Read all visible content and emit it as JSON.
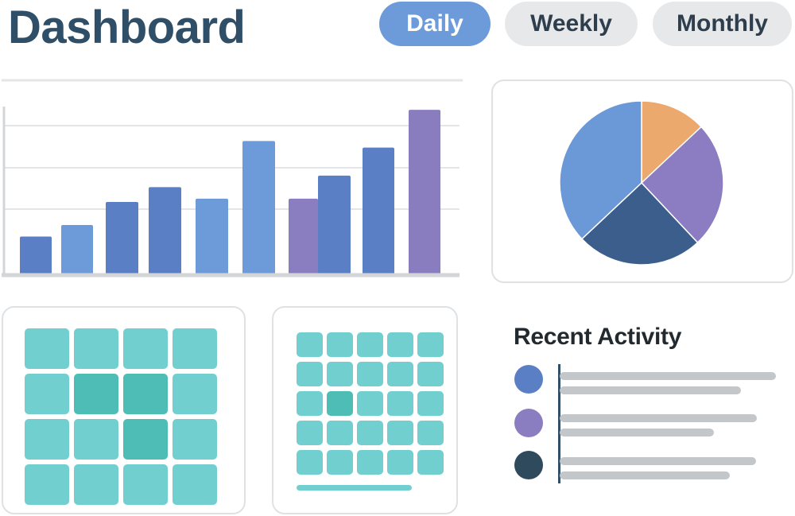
{
  "header": {
    "title": "Dashboard",
    "tabs": [
      {
        "label": "Daily",
        "active": true
      },
      {
        "label": "Weekly",
        "active": false
      },
      {
        "label": "Monthly",
        "active": false
      }
    ]
  },
  "chart_data": [
    {
      "type": "bar",
      "title": "",
      "xlabel": "",
      "ylabel": "",
      "ylim": [
        0,
        100
      ],
      "grid": true,
      "bars": [
        {
          "value": 22,
          "color": "#5a7fc4"
        },
        {
          "value": 29,
          "color": "#6d9ad8"
        },
        {
          "value": 43,
          "color": "#5a7fc4"
        },
        {
          "value": 52,
          "color": "#5a7fc4"
        },
        {
          "value": 45,
          "color": "#6d9ad8"
        },
        {
          "value": 80,
          "color": "#6d9ad8"
        },
        {
          "value": 45,
          "color": "#8a7dc0"
        },
        {
          "value": 59,
          "color": "#5a7fc4"
        },
        {
          "value": 76,
          "color": "#5a7fc4"
        },
        {
          "value": 99,
          "color": "#8a7dbf"
        }
      ]
    },
    {
      "type": "pie",
      "slices": [
        {
          "value": 13,
          "color": "#eba96e"
        },
        {
          "value": 25,
          "color": "#8c7dc2"
        },
        {
          "value": 25,
          "color": "#3b5e8c"
        },
        {
          "value": 37,
          "color": "#6b98d6"
        }
      ]
    }
  ],
  "heatmap": {
    "cells": [
      "light",
      "light",
      "light",
      "light",
      "light",
      "dark",
      "dark",
      "light",
      "light",
      "light",
      "dark",
      "light",
      "light",
      "light",
      "light",
      "light"
    ],
    "colors": {
      "light": "#72cfcf",
      "dark": "#4dbdb5"
    }
  },
  "calendar": {
    "cells": [
      "light",
      "light",
      "light",
      "light",
      "light",
      "light",
      "light",
      "light",
      "light",
      "light",
      "light",
      "dark",
      "light",
      "light",
      "light",
      "light",
      "light",
      "light",
      "light",
      "light",
      "light",
      "light",
      "light",
      "light",
      "light"
    ],
    "colors": {
      "light": "#72cfcf",
      "dark": "#4dbdb5"
    },
    "progress": 0.6
  },
  "recent_activity": {
    "title": "Recent Activity",
    "items": [
      {
        "dot_color": "#5a7fc4"
      },
      {
        "dot_color": "#8a7dc0"
      },
      {
        "dot_color": "#2f4a5c"
      }
    ]
  }
}
